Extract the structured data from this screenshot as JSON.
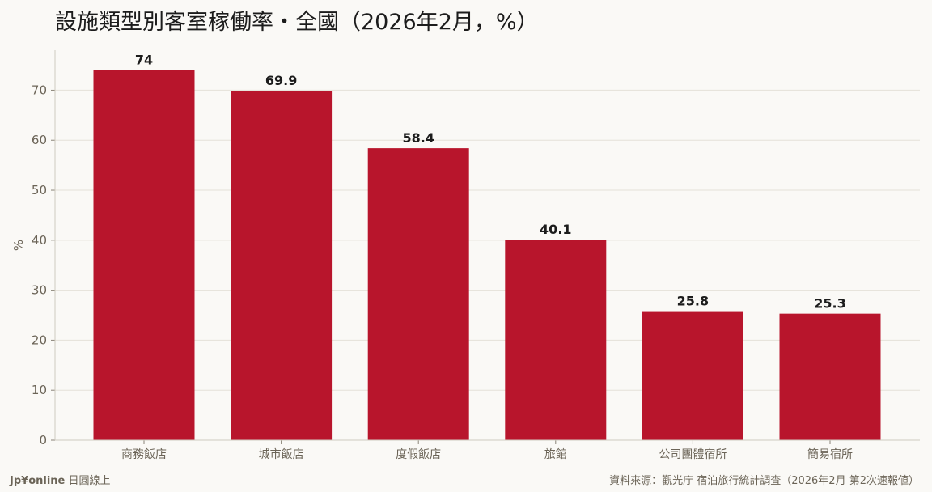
{
  "chart_data": {
    "type": "bar",
    "title": "設施類型別客室稼働率・全國（2026年2月，%）",
    "categories": [
      "商務飯店",
      "城市飯店",
      "度假飯店",
      "旅館",
      "公司團體宿所",
      "簡易宿所"
    ],
    "values": [
      74,
      69.9,
      58.4,
      40.1,
      25.8,
      25.3
    ],
    "value_labels": [
      "74",
      "69.9",
      "58.4",
      "40.1",
      "25.8",
      "25.3"
    ],
    "ylabel": "%",
    "xlabel": "",
    "ylim": [
      0,
      78
    ],
    "yticks": [
      0,
      10,
      20,
      30,
      40,
      50,
      60,
      70
    ],
    "grid": true,
    "bar_color": "#b8152c",
    "gridline_color": "#e4e1d8",
    "axis_text_color": "#6b6457"
  },
  "footer": {
    "brand": "Jp¥online",
    "brand_suffix": "日圓線上",
    "source": "資料來源：觀光庁 宿泊旅行統計調査（2026年2月 第2次速報値）"
  }
}
